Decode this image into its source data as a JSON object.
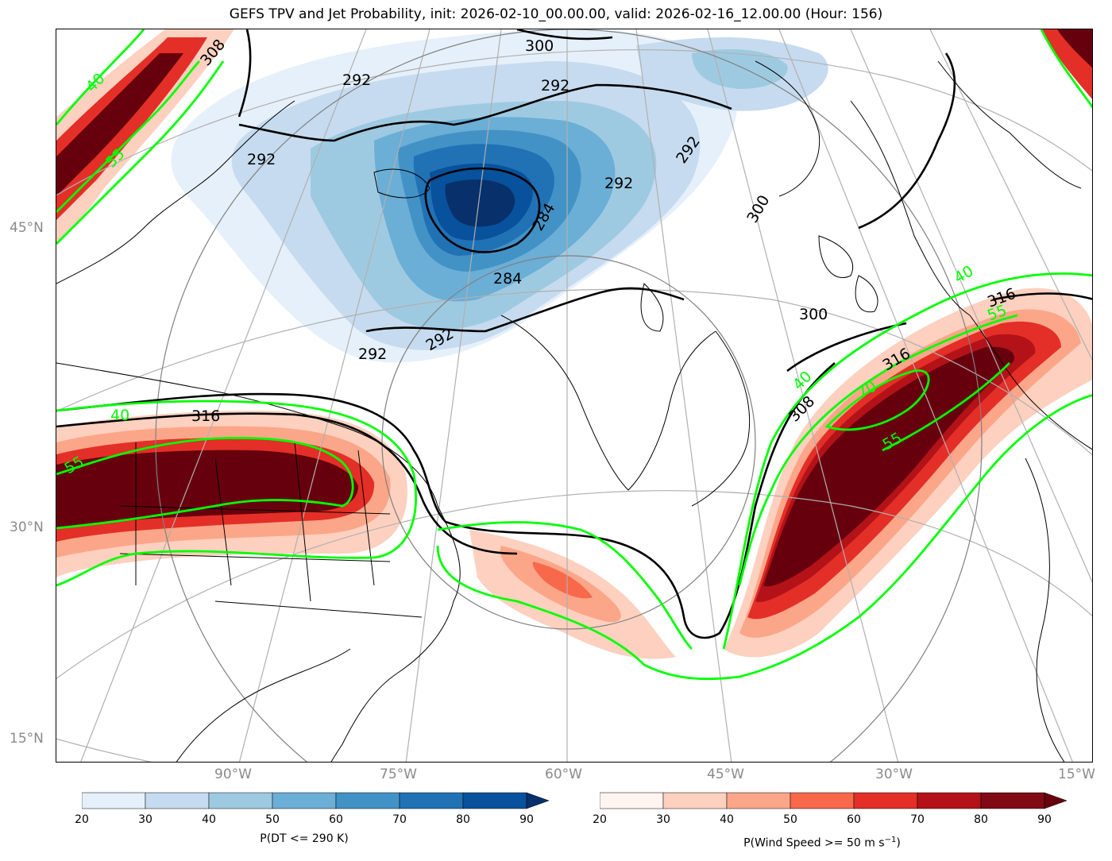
{
  "title": "GEFS TPV and Jet Probability, init: 2026-02-10_00.00.00, valid: 2026-02-16_12.00.00 (Hour: 156)",
  "lat_labels": [
    "45°N",
    "30°N",
    "15°N"
  ],
  "lon_labels": [
    "90°W",
    "75°W",
    "60°W",
    "45°W",
    "30°W",
    "15°W"
  ],
  "contour_labels_black": [
    "300",
    "308",
    "292",
    "292",
    "292",
    "292",
    "292",
    "284",
    "284",
    "300",
    "300",
    "292",
    "292",
    "316",
    "316",
    "308",
    "316"
  ],
  "contour_labels_green": [
    "40",
    "55",
    "40",
    "55",
    "40",
    "55",
    "70",
    "55",
    "40"
  ],
  "colorbar_blue": {
    "label": "P(DT <= 290 K)",
    "ticks": [
      "20",
      "30",
      "40",
      "50",
      "60",
      "70",
      "80",
      "90"
    ],
    "colors": [
      "#e6f0fa",
      "#c6dbef",
      "#9ecae1",
      "#6baed6",
      "#4292c6",
      "#2171b5",
      "#08519c",
      "#08306b"
    ]
  },
  "colorbar_red": {
    "label": "P(Wind Speed >= 50 m s",
    "label_sup": "−1",
    "label_end": ")",
    "ticks": [
      "20",
      "30",
      "40",
      "50",
      "60",
      "70",
      "80",
      "90"
    ],
    "colors": [
      "#fff5f0",
      "#fdd0bf",
      "#fca689",
      "#f7694a",
      "#e32f27",
      "#b31218",
      "#800a14",
      "#67000d"
    ]
  },
  "colors": {
    "jet_contour": "#00ff00",
    "dt_contour": "#000000",
    "grid": "#b0b0b0"
  }
}
